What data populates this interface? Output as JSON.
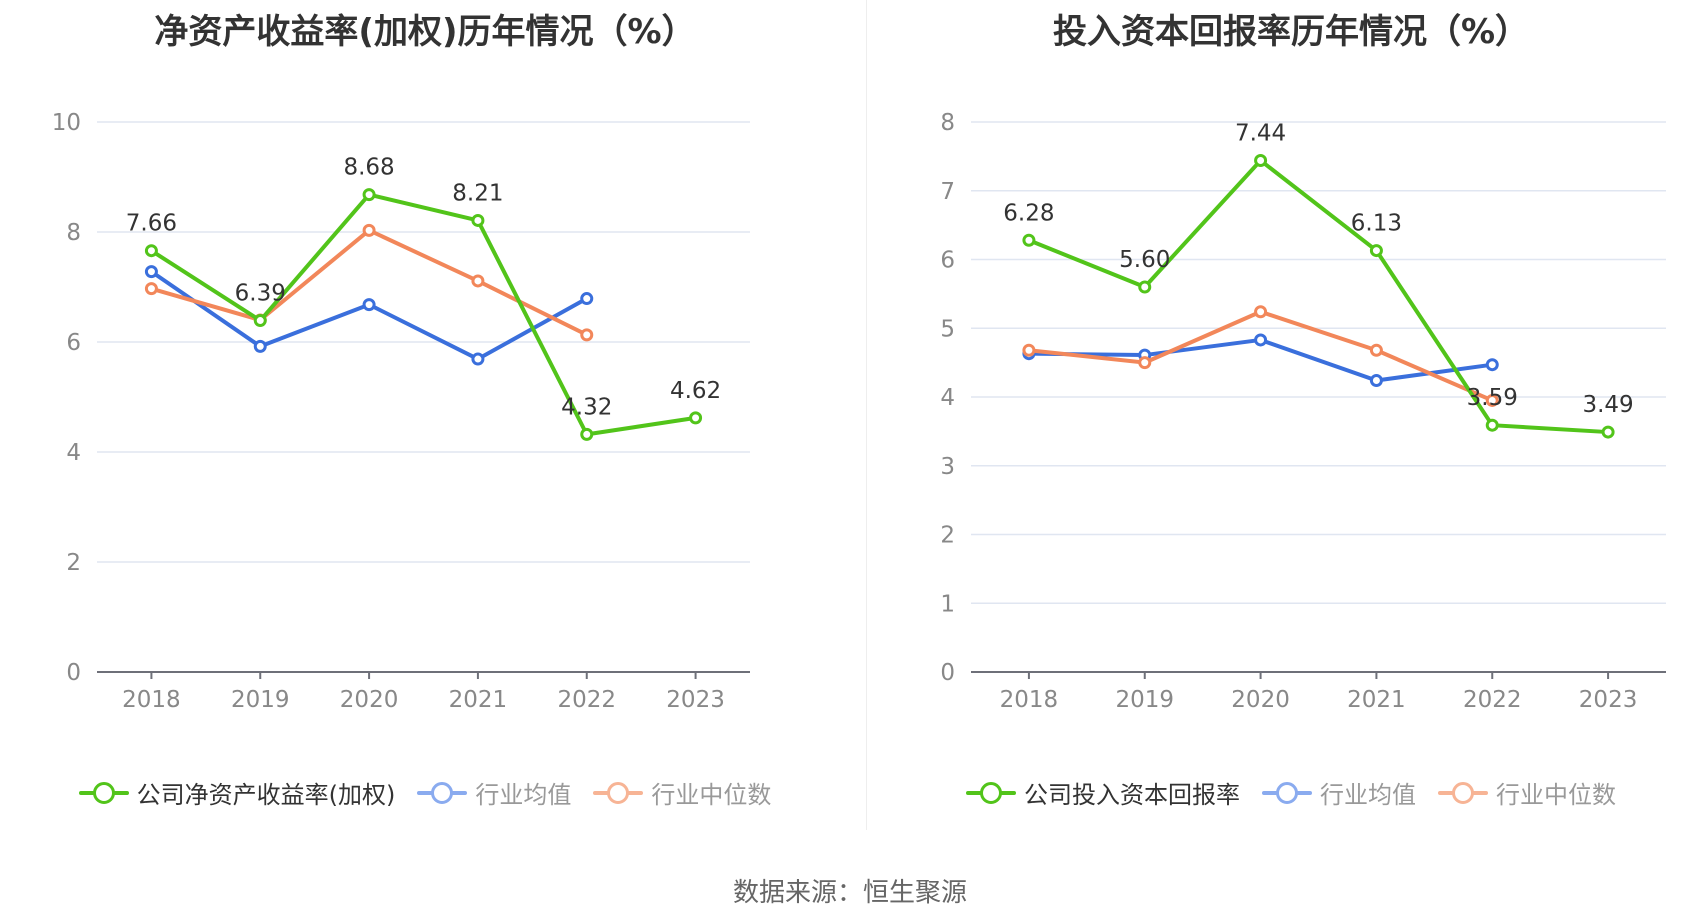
{
  "chart_data": [
    {
      "type": "line",
      "title": "净资产收益率(加权)历年情况（%）",
      "categories": [
        "2018",
        "2019",
        "2020",
        "2021",
        "2022",
        "2023"
      ],
      "ylim": [
        0,
        10
      ],
      "yticks": [
        0,
        2,
        4,
        6,
        8,
        10
      ],
      "grid": true,
      "legend_position": "bottom",
      "series": [
        {
          "name": "公司净资产收益率(加权)",
          "color": "#52c41a",
          "values": [
            7.66,
            6.39,
            8.68,
            8.21,
            4.32,
            4.62
          ],
          "labels": [
            "7.66",
            "6.39",
            "8.68",
            "8.21",
            "4.32",
            "4.62"
          ]
        },
        {
          "name": "行业均值",
          "color": "#3a6fdc",
          "values": [
            7.28,
            5.92,
            6.68,
            5.69,
            6.79,
            null
          ]
        },
        {
          "name": "行业中位数",
          "color": "#f2875a",
          "values": [
            6.97,
            6.4,
            8.03,
            7.11,
            6.13,
            null
          ]
        }
      ]
    },
    {
      "type": "line",
      "title": "投入资本回报率历年情况（%）",
      "categories": [
        "2018",
        "2019",
        "2020",
        "2021",
        "2022",
        "2023"
      ],
      "ylim": [
        0,
        8
      ],
      "yticks": [
        0,
        1,
        2,
        3,
        4,
        5,
        6,
        7,
        8
      ],
      "grid": true,
      "legend_position": "bottom",
      "series": [
        {
          "name": "公司投入资本回报率",
          "color": "#52c41a",
          "values": [
            6.28,
            5.6,
            7.44,
            6.13,
            3.59,
            3.49
          ],
          "labels": [
            "6.28",
            "5.60",
            "7.44",
            "6.13",
            "3.59",
            "3.49"
          ]
        },
        {
          "name": "行业均值",
          "color": "#3a6fdc",
          "values": [
            4.63,
            4.61,
            4.83,
            4.24,
            4.47,
            null
          ]
        },
        {
          "name": "行业中位数",
          "color": "#f2875a",
          "values": [
            4.68,
            4.5,
            5.24,
            4.68,
            3.95,
            null
          ]
        }
      ]
    }
  ],
  "footer": {
    "source": "数据来源：恒生聚源"
  }
}
